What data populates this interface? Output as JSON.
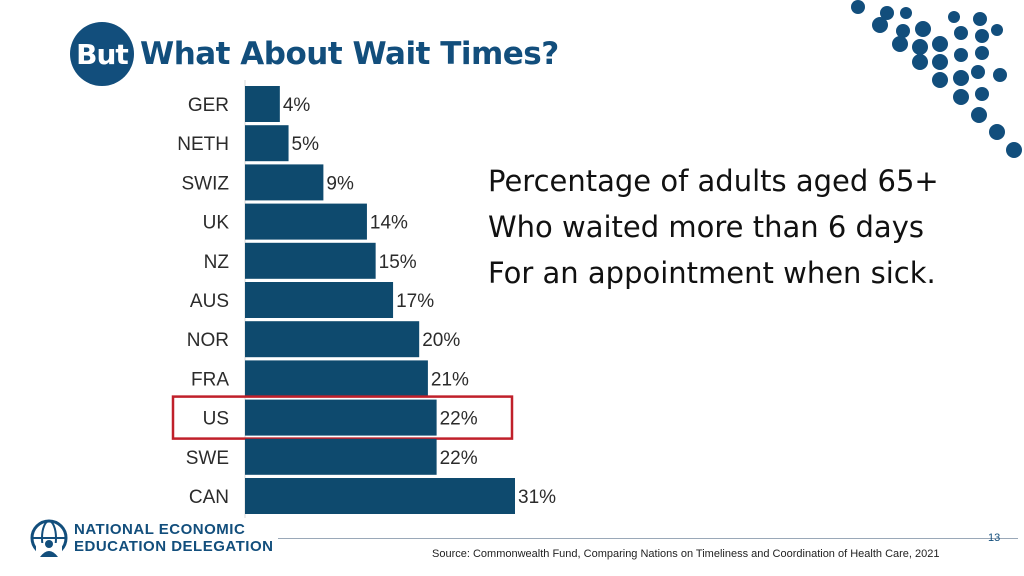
{
  "slide": {
    "title_circle": "But",
    "title": "What About Wait Times?",
    "description_lines": [
      "Percentage of adults aged 65+",
      "Who waited more than 6 days",
      "For an appointment when sick."
    ],
    "page_number": "13",
    "source": "Source: Commonwealth Fund, Comparing Nations on Timeliness and Coordination of Health Care, 2021",
    "logo_lines": [
      "NATIONAL ECONOMIC",
      "EDUCATION DELEGATION"
    ],
    "logo_icon": "globe-person-icon"
  },
  "colors": {
    "brand": "#124e7c",
    "bar": "#0e4a6e",
    "highlight": "#c0202a",
    "dots": "#124e7c"
  },
  "chart_data": {
    "type": "bar",
    "orientation": "horizontal",
    "categories": [
      "GER",
      "NETH",
      "SWIZ",
      "UK",
      "NZ",
      "AUS",
      "NOR",
      "FRA",
      "US",
      "SWE",
      "CAN"
    ],
    "values": [
      4,
      5,
      9,
      14,
      15,
      17,
      20,
      21,
      22,
      22,
      31
    ],
    "value_labels": [
      "4%",
      "5%",
      "9%",
      "14%",
      "15%",
      "17%",
      "20%",
      "21%",
      "22%",
      "22%",
      "31%"
    ],
    "highlighted_category": "US",
    "xlim": [
      0,
      31
    ],
    "grid": false,
    "legend": "none"
  }
}
